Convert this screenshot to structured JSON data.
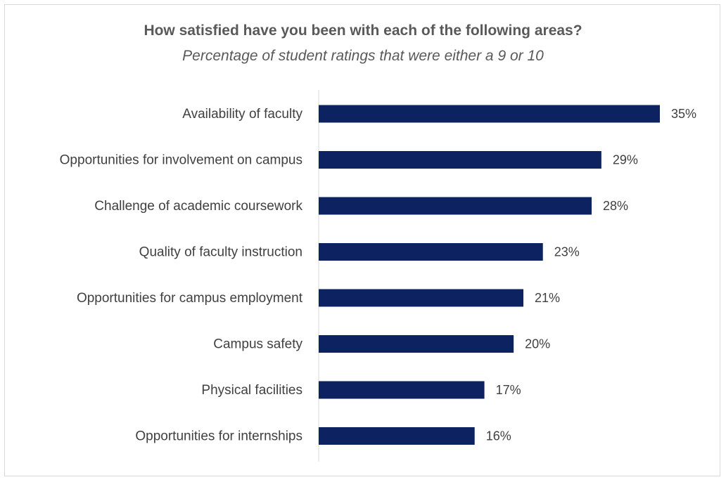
{
  "chart_data": {
    "type": "bar",
    "orientation": "horizontal",
    "title": "How satisfied have you been with each of the following areas?",
    "subtitle": "Percentage of student ratings that were either a 9 or 10",
    "categories": [
      "Availability of faculty",
      "Opportunities for involvement on campus",
      "Challenge of academic coursework",
      "Quality of faculty instruction",
      "Opportunities for campus employment",
      "Campus safety",
      "Physical facilities",
      "Opportunities for internships"
    ],
    "values": [
      35,
      29,
      28,
      23,
      21,
      20,
      17,
      16
    ],
    "value_labels": [
      "35%",
      "29%",
      "28%",
      "23%",
      "21%",
      "20%",
      "17%",
      "16%"
    ],
    "unit": "%",
    "xlim": [
      0,
      35
    ],
    "grid": false,
    "legend": "none",
    "bar_color": "#0d2260"
  }
}
